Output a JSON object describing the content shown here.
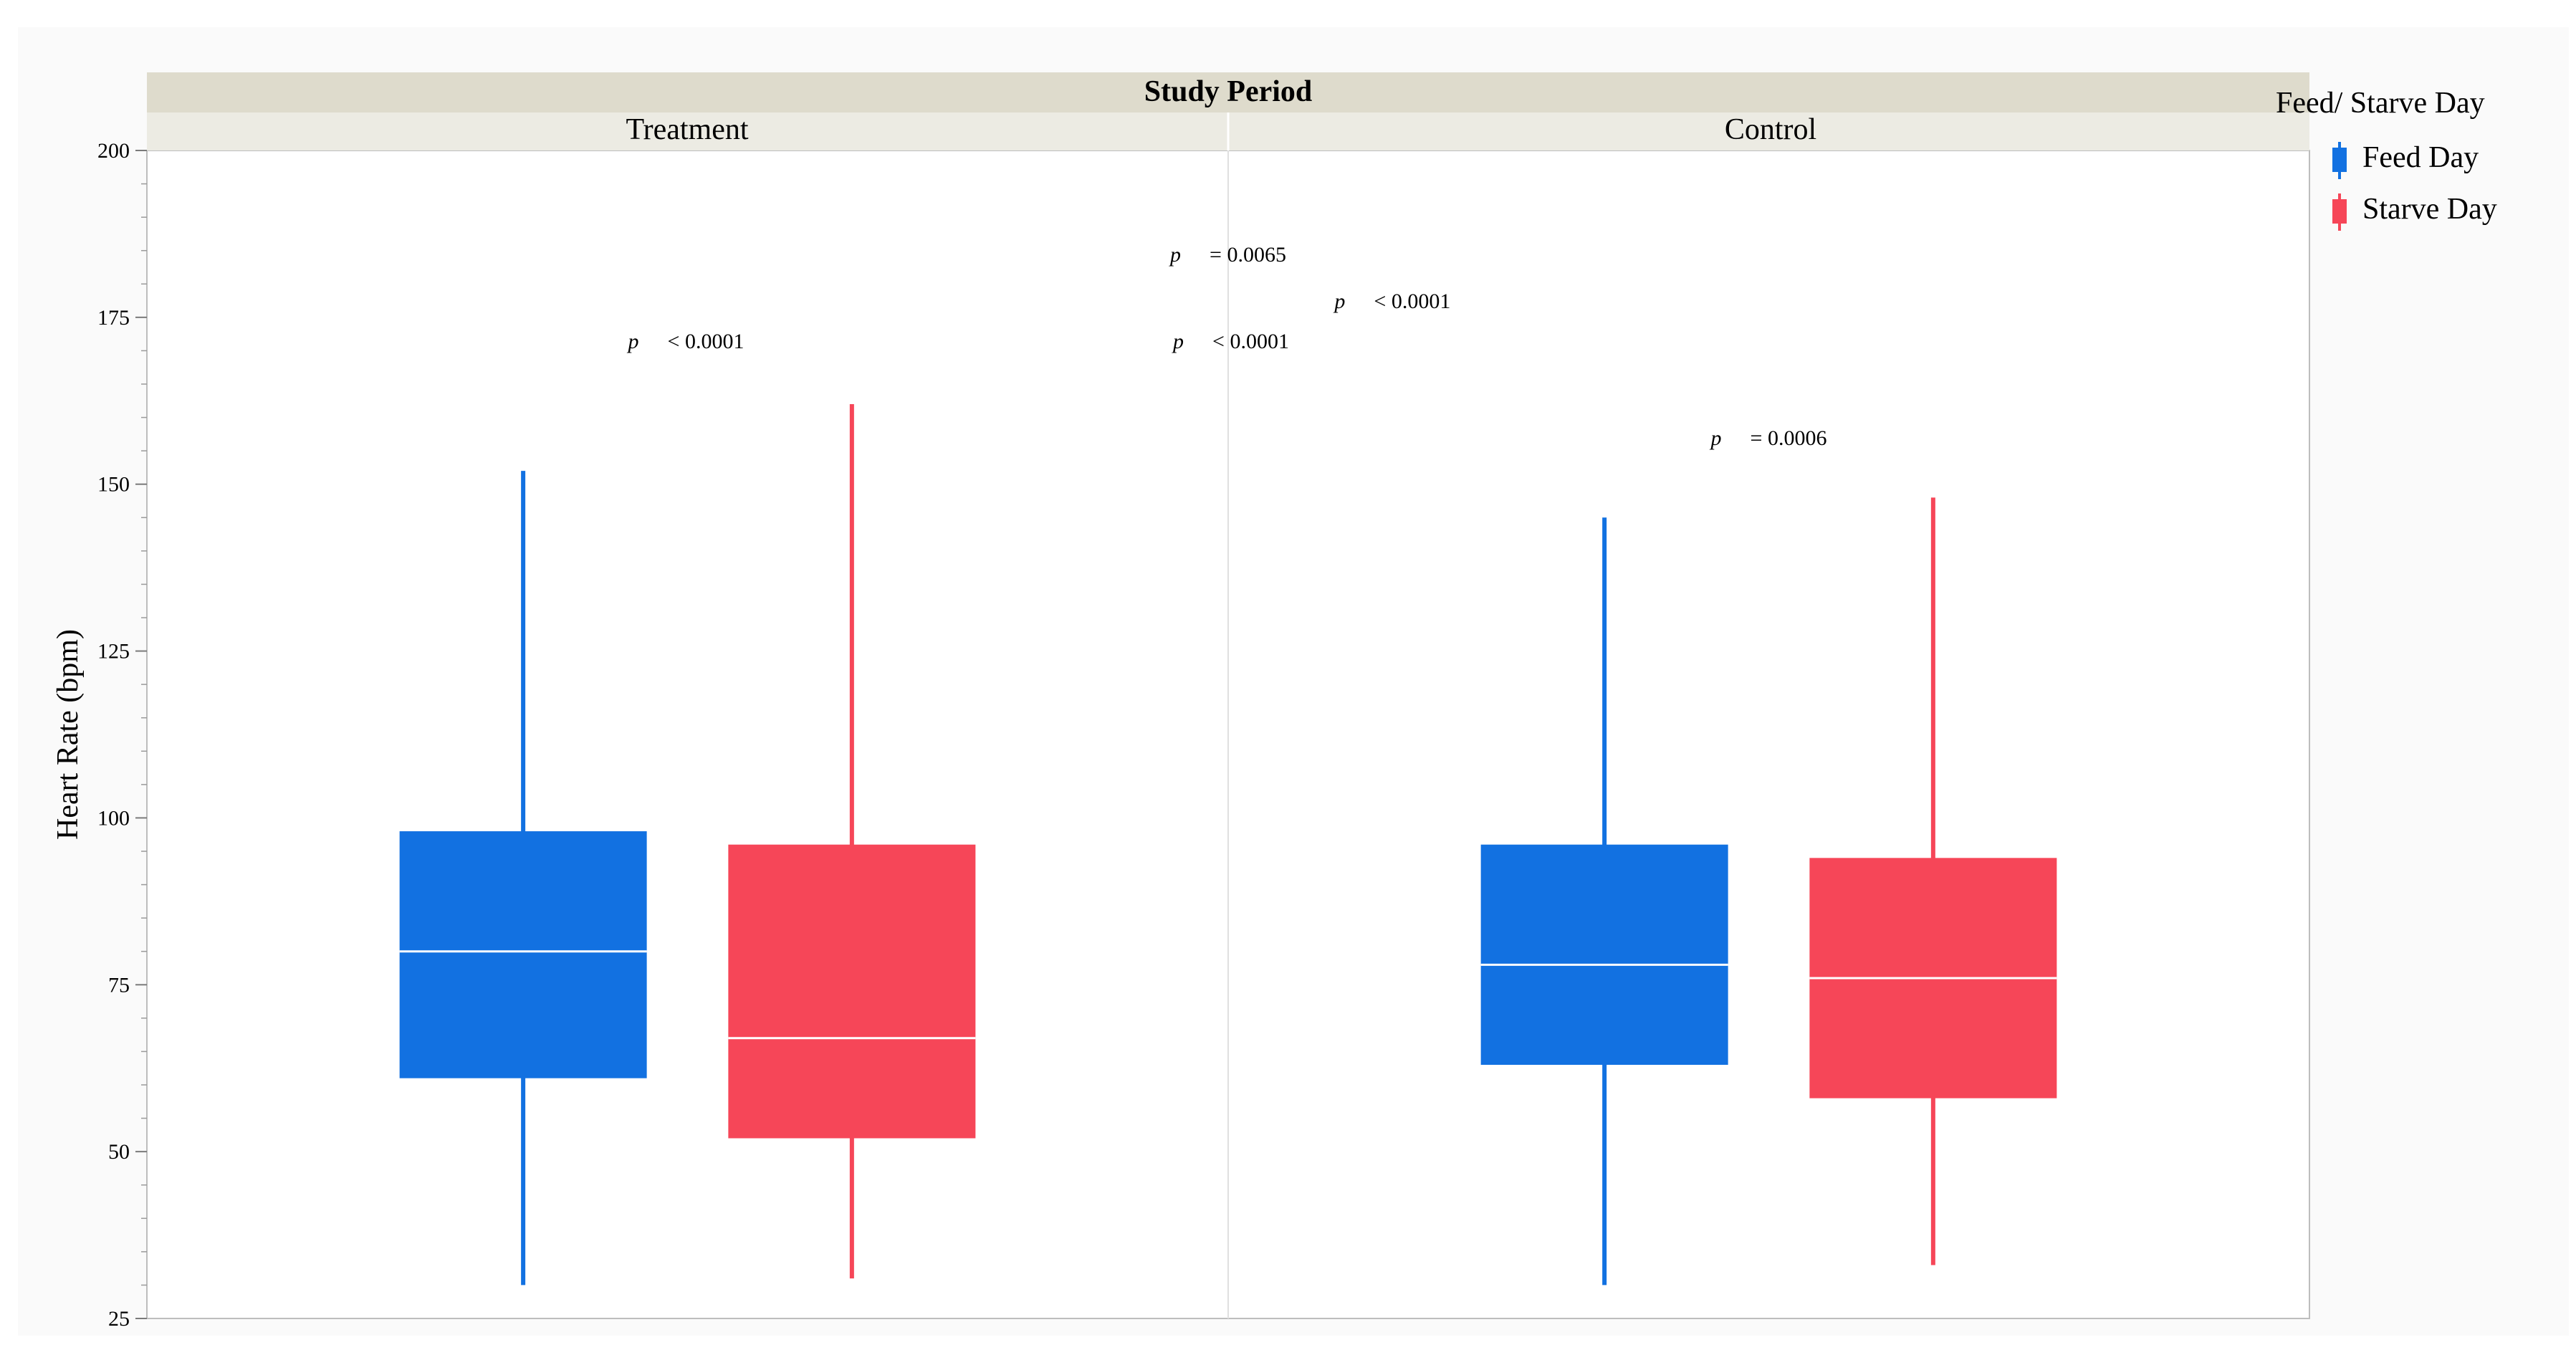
{
  "colors": {
    "feed": "#1271e1",
    "starve": "#f64658",
    "header_top": "#dedbcc",
    "header_bottom": "#ecebe3",
    "frame": "#bdbdbd",
    "divider": "#e0e0e0",
    "page_bg": "#fafafa"
  },
  "legend": {
    "title": "Feed/ Starve Day",
    "items": [
      {
        "label": "Feed Day",
        "color": "#1271e1"
      },
      {
        "label": "Starve Day",
        "color": "#f64658"
      }
    ]
  },
  "chart_data": {
    "type": "boxplot",
    "title": "Study Period",
    "ylabel": "Heart Rate (bpm)",
    "ylim": [
      25,
      200
    ],
    "yticks": [
      25,
      50,
      75,
      100,
      125,
      150,
      175,
      200
    ],
    "yticks_labels": [
      "25",
      "50",
      "75",
      "100",
      "125",
      "150",
      "175",
      "200"
    ],
    "grid": false,
    "legend_position": "right",
    "panels": [
      "Treatment",
      "Control"
    ],
    "series": [
      {
        "name": "Feed Day",
        "color": "#1271e1",
        "boxes": [
          {
            "panel": "Treatment",
            "min": 30,
            "q1": 61,
            "median": 80,
            "q3": 98,
            "max": 152
          },
          {
            "panel": "Control",
            "min": 30,
            "q1": 63,
            "median": 78,
            "q3": 96,
            "max": 145
          }
        ]
      },
      {
        "name": "Starve Day",
        "color": "#f64658",
        "boxes": [
          {
            "panel": "Treatment",
            "min": 31,
            "q1": 52,
            "median": 67,
            "q3": 96,
            "max": 162
          },
          {
            "panel": "Control",
            "min": 33,
            "q1": 58,
            "median": 76,
            "q3": 94,
            "max": 148
          }
        ]
      }
    ],
    "annotations": [
      {
        "from": [
          0,
          0
        ],
        "to": [
          1,
          1
        ],
        "level": 181,
        "end_left": 175.5,
        "end_right": 175.5,
        "p": "p",
        "text": "= 0.0065"
      },
      {
        "from": [
          0,
          1
        ],
        "to": [
          1,
          1
        ],
        "level": 174,
        "end_left": 168.5,
        "end_right": 169.5,
        "p": "p",
        "text": "< 0.0001"
      },
      {
        "from": [
          0,
          0
        ],
        "to": [
          0,
          1
        ],
        "level": 168,
        "end_left": 162.5,
        "end_right": 162.5,
        "p": "p",
        "text": "< 0.0001"
      },
      {
        "from": [
          0,
          1
        ],
        "to": [
          1,
          0
        ],
        "level": 168,
        "end_left": 162.5,
        "end_right": 163,
        "p": "p",
        "text": "< 0.0001"
      },
      {
        "from": [
          1,
          0
        ],
        "to": [
          1,
          1
        ],
        "level": 153.5,
        "end_left": 148.5,
        "end_right": 148.5,
        "p": "p",
        "text": "= 0.0006"
      }
    ]
  }
}
